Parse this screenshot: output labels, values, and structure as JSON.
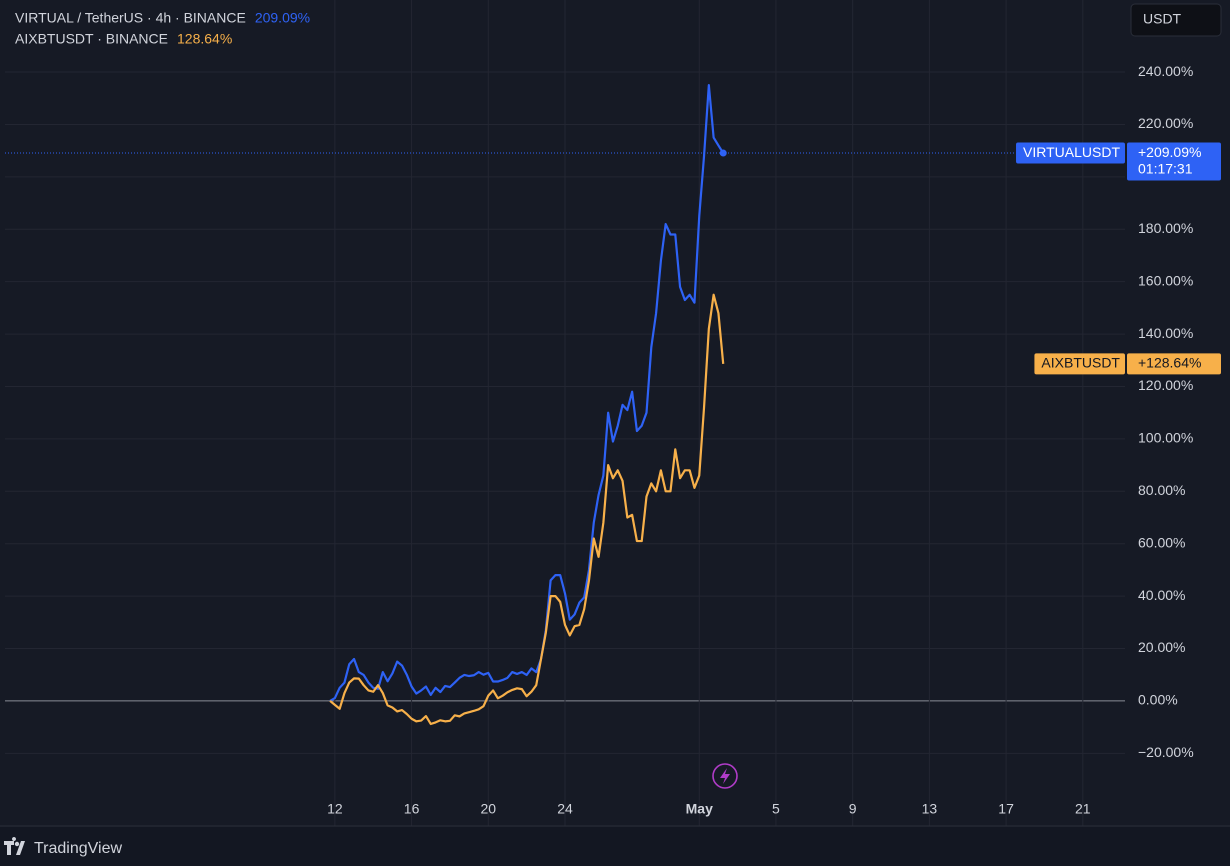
{
  "chart_data": {
    "type": "line",
    "currency_button": "USDT",
    "brand": "TradingView",
    "xlim": [
      -5.2,
      53.2
    ],
    "ylim": [
      -34,
      267.5
    ],
    "xticks": [
      12,
      16,
      20,
      24,
      {
        "value": 31,
        "label": "May"
      },
      {
        "value": 35,
        "label": "5"
      },
      {
        "value": 39,
        "label": "9"
      },
      {
        "value": 43,
        "label": "13"
      },
      {
        "value": 47,
        "label": "17"
      },
      {
        "value": 51,
        "label": "21"
      }
    ],
    "yticks": [
      {
        "value": -20,
        "label": "−20.00%"
      },
      {
        "value": 0,
        "label": "0.00%"
      },
      {
        "value": 20,
        "label": "20.00%"
      },
      {
        "value": 40,
        "label": "40.00%"
      },
      {
        "value": 60,
        "label": "60.00%"
      },
      {
        "value": 80,
        "label": "80.00%"
      },
      {
        "value": 100,
        "label": "100.00%"
      },
      {
        "value": 120,
        "label": "120.00%"
      },
      {
        "value": 140,
        "label": "140.00%"
      },
      {
        "value": 160,
        "label": "160.00%"
      },
      {
        "value": 180,
        "label": "180.00%"
      },
      {
        "value": 200,
        "label": "200.00%"
      },
      {
        "value": 220,
        "label": "220.00%"
      },
      {
        "value": 240,
        "label": "240.00%"
      }
    ],
    "grid": true,
    "x": [
      11.75,
      12,
      12.25,
      12.5,
      12.75,
      13,
      13.25,
      13.5,
      13.75,
      14,
      14.25,
      14.5,
      14.75,
      15,
      15.25,
      15.5,
      15.75,
      16,
      16.25,
      16.5,
      16.75,
      17,
      17.25,
      17.5,
      17.75,
      18,
      18.25,
      18.5,
      18.75,
      19,
      19.25,
      19.5,
      19.75,
      20,
      20.25,
      20.5,
      20.75,
      21,
      21.25,
      21.5,
      21.75,
      22,
      22.25,
      22.5,
      22.75,
      23,
      23.25,
      23.5,
      23.75,
      24,
      24.25,
      24.5,
      24.75,
      25,
      25.25,
      25.5,
      25.75,
      26,
      26.25,
      26.5,
      26.75,
      27,
      27.25,
      27.5,
      27.75,
      28,
      28.25,
      28.5,
      28.75,
      29,
      29.25,
      29.5,
      29.75,
      30,
      30.25,
      30.5,
      30.75,
      31,
      31.25,
      31.5,
      31.75,
      32,
      32.25
    ],
    "series": [
      {
        "name": "VIRTUAL / TetherUS · 4h · BINANCE",
        "symbol": "VIRTUALUSDT",
        "legend_value": "209.09%",
        "tag_value": "+209.09%",
        "countdown": "01:17:31",
        "color": "#2e62f5",
        "values": [
          0,
          1.1,
          5,
          7,
          14,
          16,
          11,
          9.9,
          7,
          5,
          4.6,
          11,
          7.5,
          10.5,
          15,
          13.5,
          10,
          5.5,
          2.8,
          4,
          5.5,
          2.3,
          5,
          3.4,
          5.7,
          5.3,
          7,
          8.8,
          9.9,
          9.5,
          9.8,
          11,
          10,
          10.7,
          7.4,
          7.4,
          8,
          8.8,
          11,
          10.3,
          11,
          9.9,
          12.4,
          11,
          16,
          27,
          46,
          48,
          48,
          41,
          31,
          33,
          37.5,
          39.5,
          50,
          68,
          78.6,
          86,
          110,
          99,
          105,
          113,
          111,
          118,
          103,
          105,
          110,
          135,
          148,
          168,
          182,
          178,
          178,
          158,
          153,
          155,
          152,
          185,
          208,
          235,
          215,
          212,
          209.09
        ]
      },
      {
        "name": "AIXBTUSDT · BINANCE",
        "symbol": "AIXBTUSDT",
        "legend_value": "128.64%",
        "tag_value": "+128.64%",
        "color": "#f7b04a",
        "values": [
          0,
          -1.5,
          -3,
          3,
          7,
          8.6,
          8.5,
          6,
          4,
          3.5,
          6,
          3,
          -1.7,
          -2.5,
          -4,
          -3.5,
          -5,
          -6.8,
          -7.8,
          -7.5,
          -5.8,
          -8.8,
          -8.2,
          -7.4,
          -7.8,
          -7.6,
          -5.5,
          -5.9,
          -4.8,
          -4.3,
          -3.8,
          -3.2,
          -2,
          2,
          4,
          1,
          2,
          3.3,
          4.2,
          4.8,
          4.5,
          1.8,
          3.5,
          6,
          16,
          26,
          40,
          40,
          37.8,
          29,
          25,
          28.5,
          29,
          35,
          46,
          62,
          55,
          68,
          90,
          85,
          88,
          84,
          70,
          71,
          61,
          61,
          78,
          83,
          80,
          88,
          80,
          80,
          96,
          85,
          88,
          88,
          81.3,
          86,
          112,
          142,
          155,
          148,
          128.64
        ]
      }
    ]
  }
}
